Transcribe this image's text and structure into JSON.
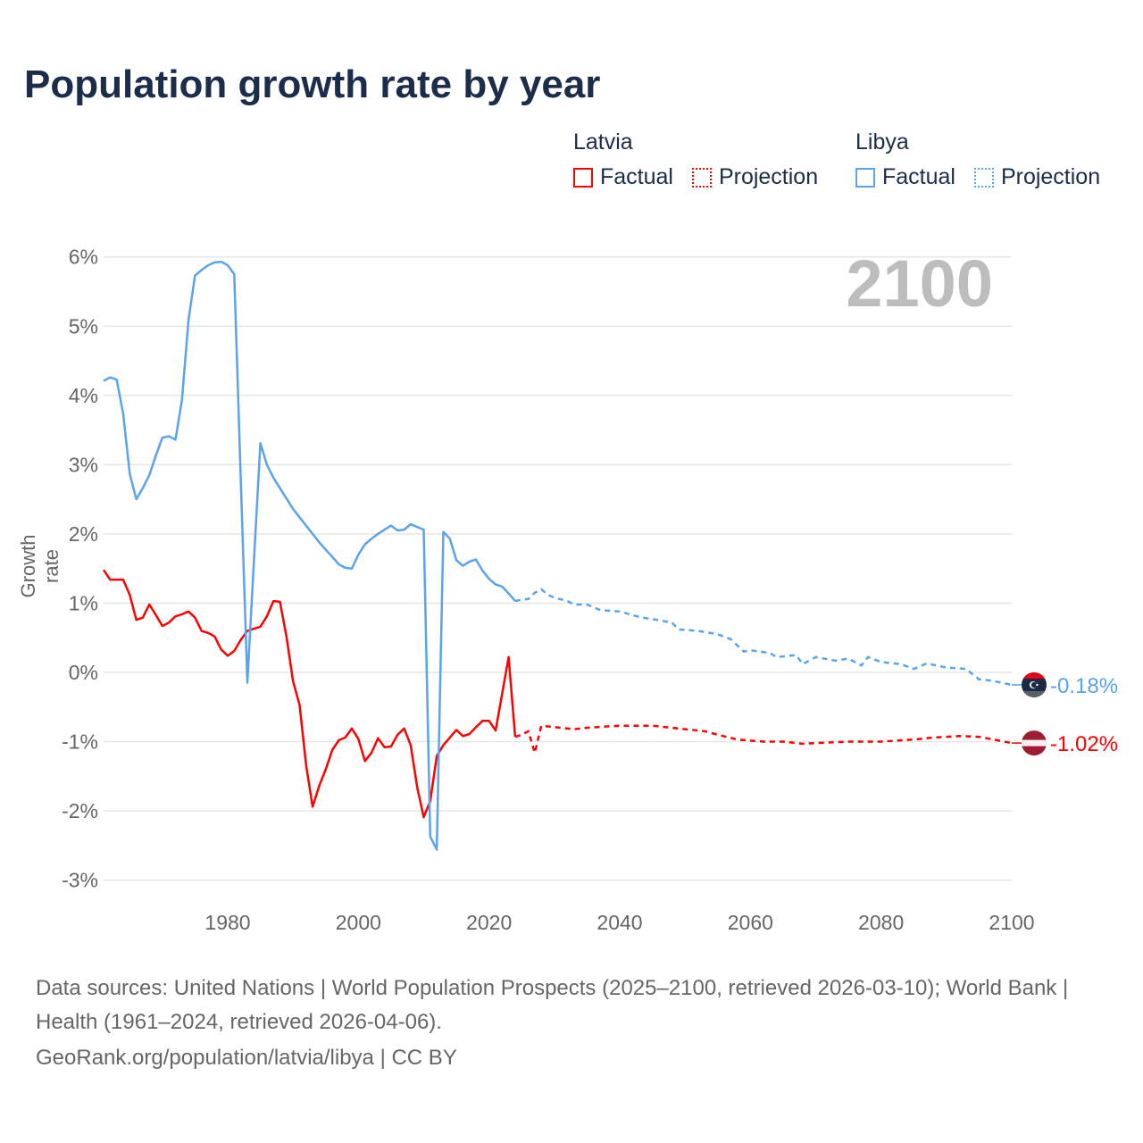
{
  "chart_data": {
    "type": "line",
    "title": "Population growth rate by year",
    "ylabel": "Growth rate",
    "xlabel": "",
    "year_display": "2100",
    "xlim": [
      1961,
      2100
    ],
    "ylim": [
      -3.4,
      6.2
    ],
    "x_ticks": [
      1980,
      2000,
      2020,
      2040,
      2060,
      2080,
      2100
    ],
    "y_ticks": [
      6,
      5,
      4,
      3,
      2,
      1,
      0,
      -1,
      -2,
      -3
    ],
    "y_tick_labels": [
      "6%",
      "5%",
      "4%",
      "3%",
      "2%",
      "1%",
      "0%",
      "-1%",
      "-2%",
      "-3%"
    ],
    "grid": true,
    "legend": {
      "placement": "top-right",
      "groups": [
        {
          "name": "Latvia",
          "factual": "Factual",
          "projection": "Projection"
        },
        {
          "name": "Libya",
          "factual": "Factual",
          "projection": "Projection"
        }
      ]
    },
    "series": [
      {
        "name": "Latvia",
        "color": "#ff0000",
        "end_label": "-1.02%",
        "factual": [
          [
            1961,
            1.48
          ],
          [
            1962,
            1.34
          ],
          [
            1963,
            1.34
          ],
          [
            1964,
            1.34
          ],
          [
            1965,
            1.12
          ],
          [
            1966,
            0.76
          ],
          [
            1967,
            0.79
          ],
          [
            1968,
            0.98
          ],
          [
            1969,
            0.83
          ],
          [
            1970,
            0.67
          ],
          [
            1971,
            0.72
          ],
          [
            1972,
            0.81
          ],
          [
            1973,
            0.84
          ],
          [
            1974,
            0.88
          ],
          [
            1975,
            0.79
          ],
          [
            1976,
            0.6
          ],
          [
            1977,
            0.57
          ],
          [
            1978,
            0.52
          ],
          [
            1979,
            0.33
          ],
          [
            1980,
            0.24
          ],
          [
            1981,
            0.31
          ],
          [
            1982,
            0.47
          ],
          [
            1983,
            0.6
          ],
          [
            1984,
            0.63
          ],
          [
            1985,
            0.66
          ],
          [
            1986,
            0.81
          ],
          [
            1987,
            1.03
          ],
          [
            1988,
            1.02
          ],
          [
            1989,
            0.51
          ],
          [
            1990,
            -0.13
          ],
          [
            1991,
            -0.47
          ],
          [
            1992,
            -1.34
          ],
          [
            1993,
            -1.94
          ],
          [
            1994,
            -1.64
          ],
          [
            1995,
            -1.4
          ],
          [
            1996,
            -1.12
          ],
          [
            1997,
            -0.98
          ],
          [
            1998,
            -0.94
          ],
          [
            1999,
            -0.81
          ],
          [
            2000,
            -0.96
          ],
          [
            2001,
            -1.28
          ],
          [
            2002,
            -1.16
          ],
          [
            2003,
            -0.95
          ],
          [
            2004,
            -1.08
          ],
          [
            2005,
            -1.07
          ],
          [
            2006,
            -0.9
          ],
          [
            2007,
            -0.81
          ],
          [
            2008,
            -1.05
          ],
          [
            2009,
            -1.66
          ],
          [
            2010,
            -2.09
          ],
          [
            2011,
            -1.86
          ],
          [
            2012,
            -1.21
          ],
          [
            2013,
            -1.05
          ],
          [
            2014,
            -0.94
          ],
          [
            2015,
            -0.83
          ],
          [
            2016,
            -0.92
          ],
          [
            2017,
            -0.89
          ],
          [
            2018,
            -0.79
          ],
          [
            2019,
            -0.7
          ],
          [
            2020,
            -0.7
          ],
          [
            2021,
            -0.84
          ],
          [
            2022,
            -0.31
          ],
          [
            2023,
            0.22
          ],
          [
            2024,
            -0.93
          ]
        ],
        "projection": [
          [
            2024,
            -0.93
          ],
          [
            2025,
            -0.9
          ],
          [
            2026,
            -0.85
          ],
          [
            2027,
            -1.16
          ],
          [
            2028,
            -0.77
          ],
          [
            2030,
            -0.79
          ],
          [
            2033,
            -0.82
          ],
          [
            2035,
            -0.8
          ],
          [
            2040,
            -0.77
          ],
          [
            2045,
            -0.77
          ],
          [
            2050,
            -0.82
          ],
          [
            2053,
            -0.85
          ],
          [
            2055,
            -0.9
          ],
          [
            2058,
            -0.97
          ],
          [
            2062,
            -1.0
          ],
          [
            2065,
            -1.0
          ],
          [
            2068,
            -1.03
          ],
          [
            2070,
            -1.02
          ],
          [
            2075,
            -1.0
          ],
          [
            2080,
            -1.0
          ],
          [
            2085,
            -0.97
          ],
          [
            2088,
            -0.94
          ],
          [
            2092,
            -0.92
          ],
          [
            2095,
            -0.93
          ],
          [
            2100,
            -1.02
          ]
        ]
      },
      {
        "name": "Libya",
        "color": "#5ba3ec",
        "end_label": "-0.18%",
        "factual": [
          [
            1961,
            4.21
          ],
          [
            1962,
            4.26
          ],
          [
            1963,
            4.23
          ],
          [
            1964,
            3.74
          ],
          [
            1965,
            2.87
          ],
          [
            1966,
            2.5
          ],
          [
            1967,
            2.66
          ],
          [
            1968,
            2.85
          ],
          [
            1969,
            3.13
          ],
          [
            1970,
            3.39
          ],
          [
            1971,
            3.41
          ],
          [
            1972,
            3.36
          ],
          [
            1973,
            3.94
          ],
          [
            1974,
            5.09
          ],
          [
            1975,
            5.73
          ],
          [
            1976,
            5.81
          ],
          [
            1977,
            5.88
          ],
          [
            1978,
            5.92
          ],
          [
            1979,
            5.93
          ],
          [
            1980,
            5.88
          ],
          [
            1981,
            5.75
          ],
          [
            1982,
            2.8
          ],
          [
            1983,
            -0.15
          ],
          [
            1984,
            1.6
          ],
          [
            1985,
            3.31
          ],
          [
            1986,
            3.0
          ],
          [
            1987,
            2.81
          ],
          [
            1988,
            2.66
          ],
          [
            1989,
            2.51
          ],
          [
            1990,
            2.36
          ],
          [
            1991,
            2.24
          ],
          [
            1992,
            2.12
          ],
          [
            1993,
            2.0
          ],
          [
            1994,
            1.88
          ],
          [
            1995,
            1.77
          ],
          [
            1996,
            1.67
          ],
          [
            1997,
            1.56
          ],
          [
            1998,
            1.51
          ],
          [
            1999,
            1.5
          ],
          [
            2000,
            1.7
          ],
          [
            2001,
            1.85
          ],
          [
            2002,
            1.93
          ],
          [
            2003,
            2.0
          ],
          [
            2004,
            2.06
          ],
          [
            2005,
            2.12
          ],
          [
            2006,
            2.05
          ],
          [
            2007,
            2.06
          ],
          [
            2008,
            2.14
          ],
          [
            2009,
            2.1
          ],
          [
            2010,
            2.06
          ],
          [
            2011,
            -2.37
          ],
          [
            2012,
            -2.56
          ],
          [
            2013,
            2.03
          ],
          [
            2014,
            1.93
          ],
          [
            2015,
            1.62
          ],
          [
            2016,
            1.54
          ],
          [
            2017,
            1.6
          ],
          [
            2018,
            1.63
          ],
          [
            2019,
            1.47
          ],
          [
            2020,
            1.35
          ],
          [
            2021,
            1.27
          ],
          [
            2022,
            1.24
          ],
          [
            2023,
            1.14
          ],
          [
            2024,
            1.03
          ]
        ],
        "projection": [
          [
            2024,
            1.03
          ],
          [
            2025,
            1.05
          ],
          [
            2026,
            1.06
          ],
          [
            2027,
            1.15
          ],
          [
            2028,
            1.2
          ],
          [
            2029,
            1.12
          ],
          [
            2030,
            1.08
          ],
          [
            2032,
            1.03
          ],
          [
            2033,
            0.98
          ],
          [
            2035,
            0.98
          ],
          [
            2037,
            0.9
          ],
          [
            2040,
            0.88
          ],
          [
            2043,
            0.8
          ],
          [
            2045,
            0.77
          ],
          [
            2048,
            0.72
          ],
          [
            2049,
            0.62
          ],
          [
            2052,
            0.6
          ],
          [
            2055,
            0.55
          ],
          [
            2057,
            0.48
          ],
          [
            2059,
            0.3
          ],
          [
            2060,
            0.32
          ],
          [
            2063,
            0.28
          ],
          [
            2064,
            0.22
          ],
          [
            2067,
            0.25
          ],
          [
            2068,
            0.12
          ],
          [
            2070,
            0.22
          ],
          [
            2073,
            0.17
          ],
          [
            2075,
            0.2
          ],
          [
            2077,
            0.1
          ],
          [
            2078,
            0.22
          ],
          [
            2080,
            0.15
          ],
          [
            2083,
            0.12
          ],
          [
            2085,
            0.05
          ],
          [
            2087,
            0.13
          ],
          [
            2090,
            0.07
          ],
          [
            2093,
            0.05
          ],
          [
            2095,
            -0.1
          ],
          [
            2097,
            -0.12
          ],
          [
            2100,
            -0.18
          ]
        ]
      }
    ]
  },
  "footer": {
    "sources": "Data sources: United Nations | World Population Prospects (2025–2100, retrieved 2026-03-10); World Bank | Health (1961–2024, retrieved 2026-04-06).",
    "url": "GeoRank.org/population/latvia/libya | CC BY"
  }
}
